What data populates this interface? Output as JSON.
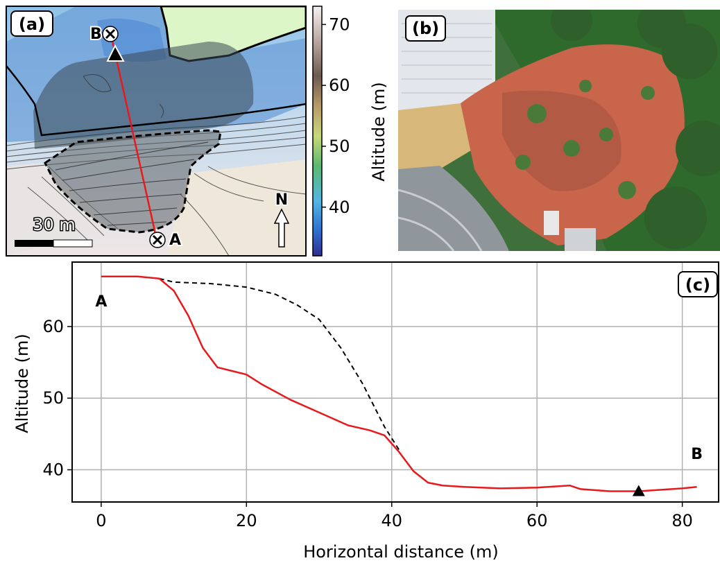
{
  "panel_a": {
    "label": "(a)",
    "point_a": "A",
    "point_b": "B",
    "scale_text": "30 m",
    "north": "N",
    "colorbar": {
      "label": "Altitude (m)",
      "ticks": [
        "70",
        "60",
        "50",
        "40"
      ],
      "range": [
        32,
        73
      ],
      "colors": [
        "#2d2f8f",
        "#2f6fd0",
        "#53b6e3",
        "#5cb870",
        "#c7d87a",
        "#b89a6a",
        "#6f5a52",
        "#b9a79f",
        "#f5f1f1"
      ]
    }
  },
  "panel_b": {
    "label": "(b)"
  },
  "chart_data": {
    "type": "line",
    "panel_label": "(c)",
    "xlabel": "Horizontal distance (m)",
    "ylabel": "Altitude (m)",
    "xlim": [
      -4,
      85
    ],
    "ylim": [
      35.5,
      69
    ],
    "xticks": [
      0,
      20,
      40,
      60,
      80
    ],
    "yticks": [
      40,
      50,
      60
    ],
    "grid": true,
    "end_labels": [
      {
        "text": "A",
        "x": 0,
        "y": 62.8
      },
      {
        "text": "B",
        "x": 82,
        "y": 41.5
      }
    ],
    "series": [
      {
        "style": "solid",
        "color": "#e8191b",
        "x": [
          0,
          5,
          8,
          10,
          12,
          14,
          16,
          18,
          20,
          22,
          26,
          30,
          34,
          37,
          39,
          41,
          43,
          45,
          47,
          50,
          55,
          60,
          64.5,
          66,
          70,
          74,
          80,
          82
        ],
        "y": [
          67,
          67,
          66.7,
          65,
          61.5,
          57,
          54.3,
          53.8,
          53.3,
          52,
          49.8,
          48,
          46.2,
          45.5,
          44.8,
          42.5,
          39.8,
          38.2,
          37.8,
          37.6,
          37.4,
          37.5,
          37.8,
          37.3,
          37,
          37,
          37.4,
          37.6
        ]
      },
      {
        "style": "dashed",
        "color": "#000000",
        "x": [
          8,
          10,
          15,
          20,
          24,
          27,
          30,
          33,
          36,
          39,
          41
        ],
        "y": [
          66.7,
          66.2,
          66,
          65.5,
          64.5,
          63,
          61,
          57,
          52,
          46,
          42.8
        ]
      }
    ],
    "markers": [
      {
        "type": "triangle",
        "x": 74,
        "y": 37
      }
    ]
  }
}
